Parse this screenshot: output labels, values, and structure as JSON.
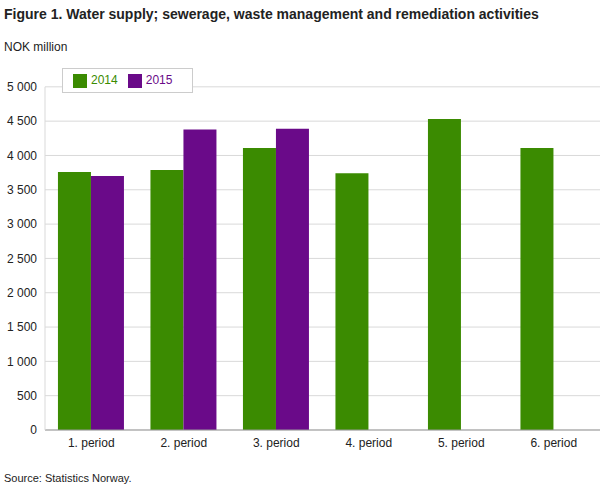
{
  "chart_data": {
    "type": "bar",
    "title": "Figure 1. Water supply; sewerage, waste management and remediation activities",
    "y_label": "NOK million",
    "source": "Source: Statistics Norway.",
    "categories": [
      "1. period",
      "2. period",
      "3. period",
      "4. period",
      "5. period",
      "6. period"
    ],
    "series": [
      {
        "name": "2014",
        "color": "#3b8b01",
        "values": [
          3760,
          3790,
          4110,
          3740,
          4530,
          4110
        ]
      },
      {
        "name": "2015",
        "color": "#6a0a89",
        "values": [
          3700,
          4380,
          4390,
          null,
          null,
          null
        ]
      }
    ],
    "ylim": [
      0,
      5000
    ],
    "yticks": [
      0,
      500,
      {
        "value": 1000,
        "label": "1 000"
      },
      {
        "value": 1500,
        "label": "1 500"
      },
      {
        "value": 2000,
        "label": "2 000"
      },
      {
        "value": 2500,
        "label": "2 500"
      },
      {
        "value": 3000,
        "label": "3 000"
      },
      {
        "value": 3500,
        "label": "3 500"
      },
      {
        "value": 4000,
        "label": "4 000"
      },
      {
        "value": 4500,
        "label": "4 500"
      },
      {
        "value": 5000,
        "label": "5 000"
      }
    ],
    "grid": true,
    "legend": "upper left"
  }
}
